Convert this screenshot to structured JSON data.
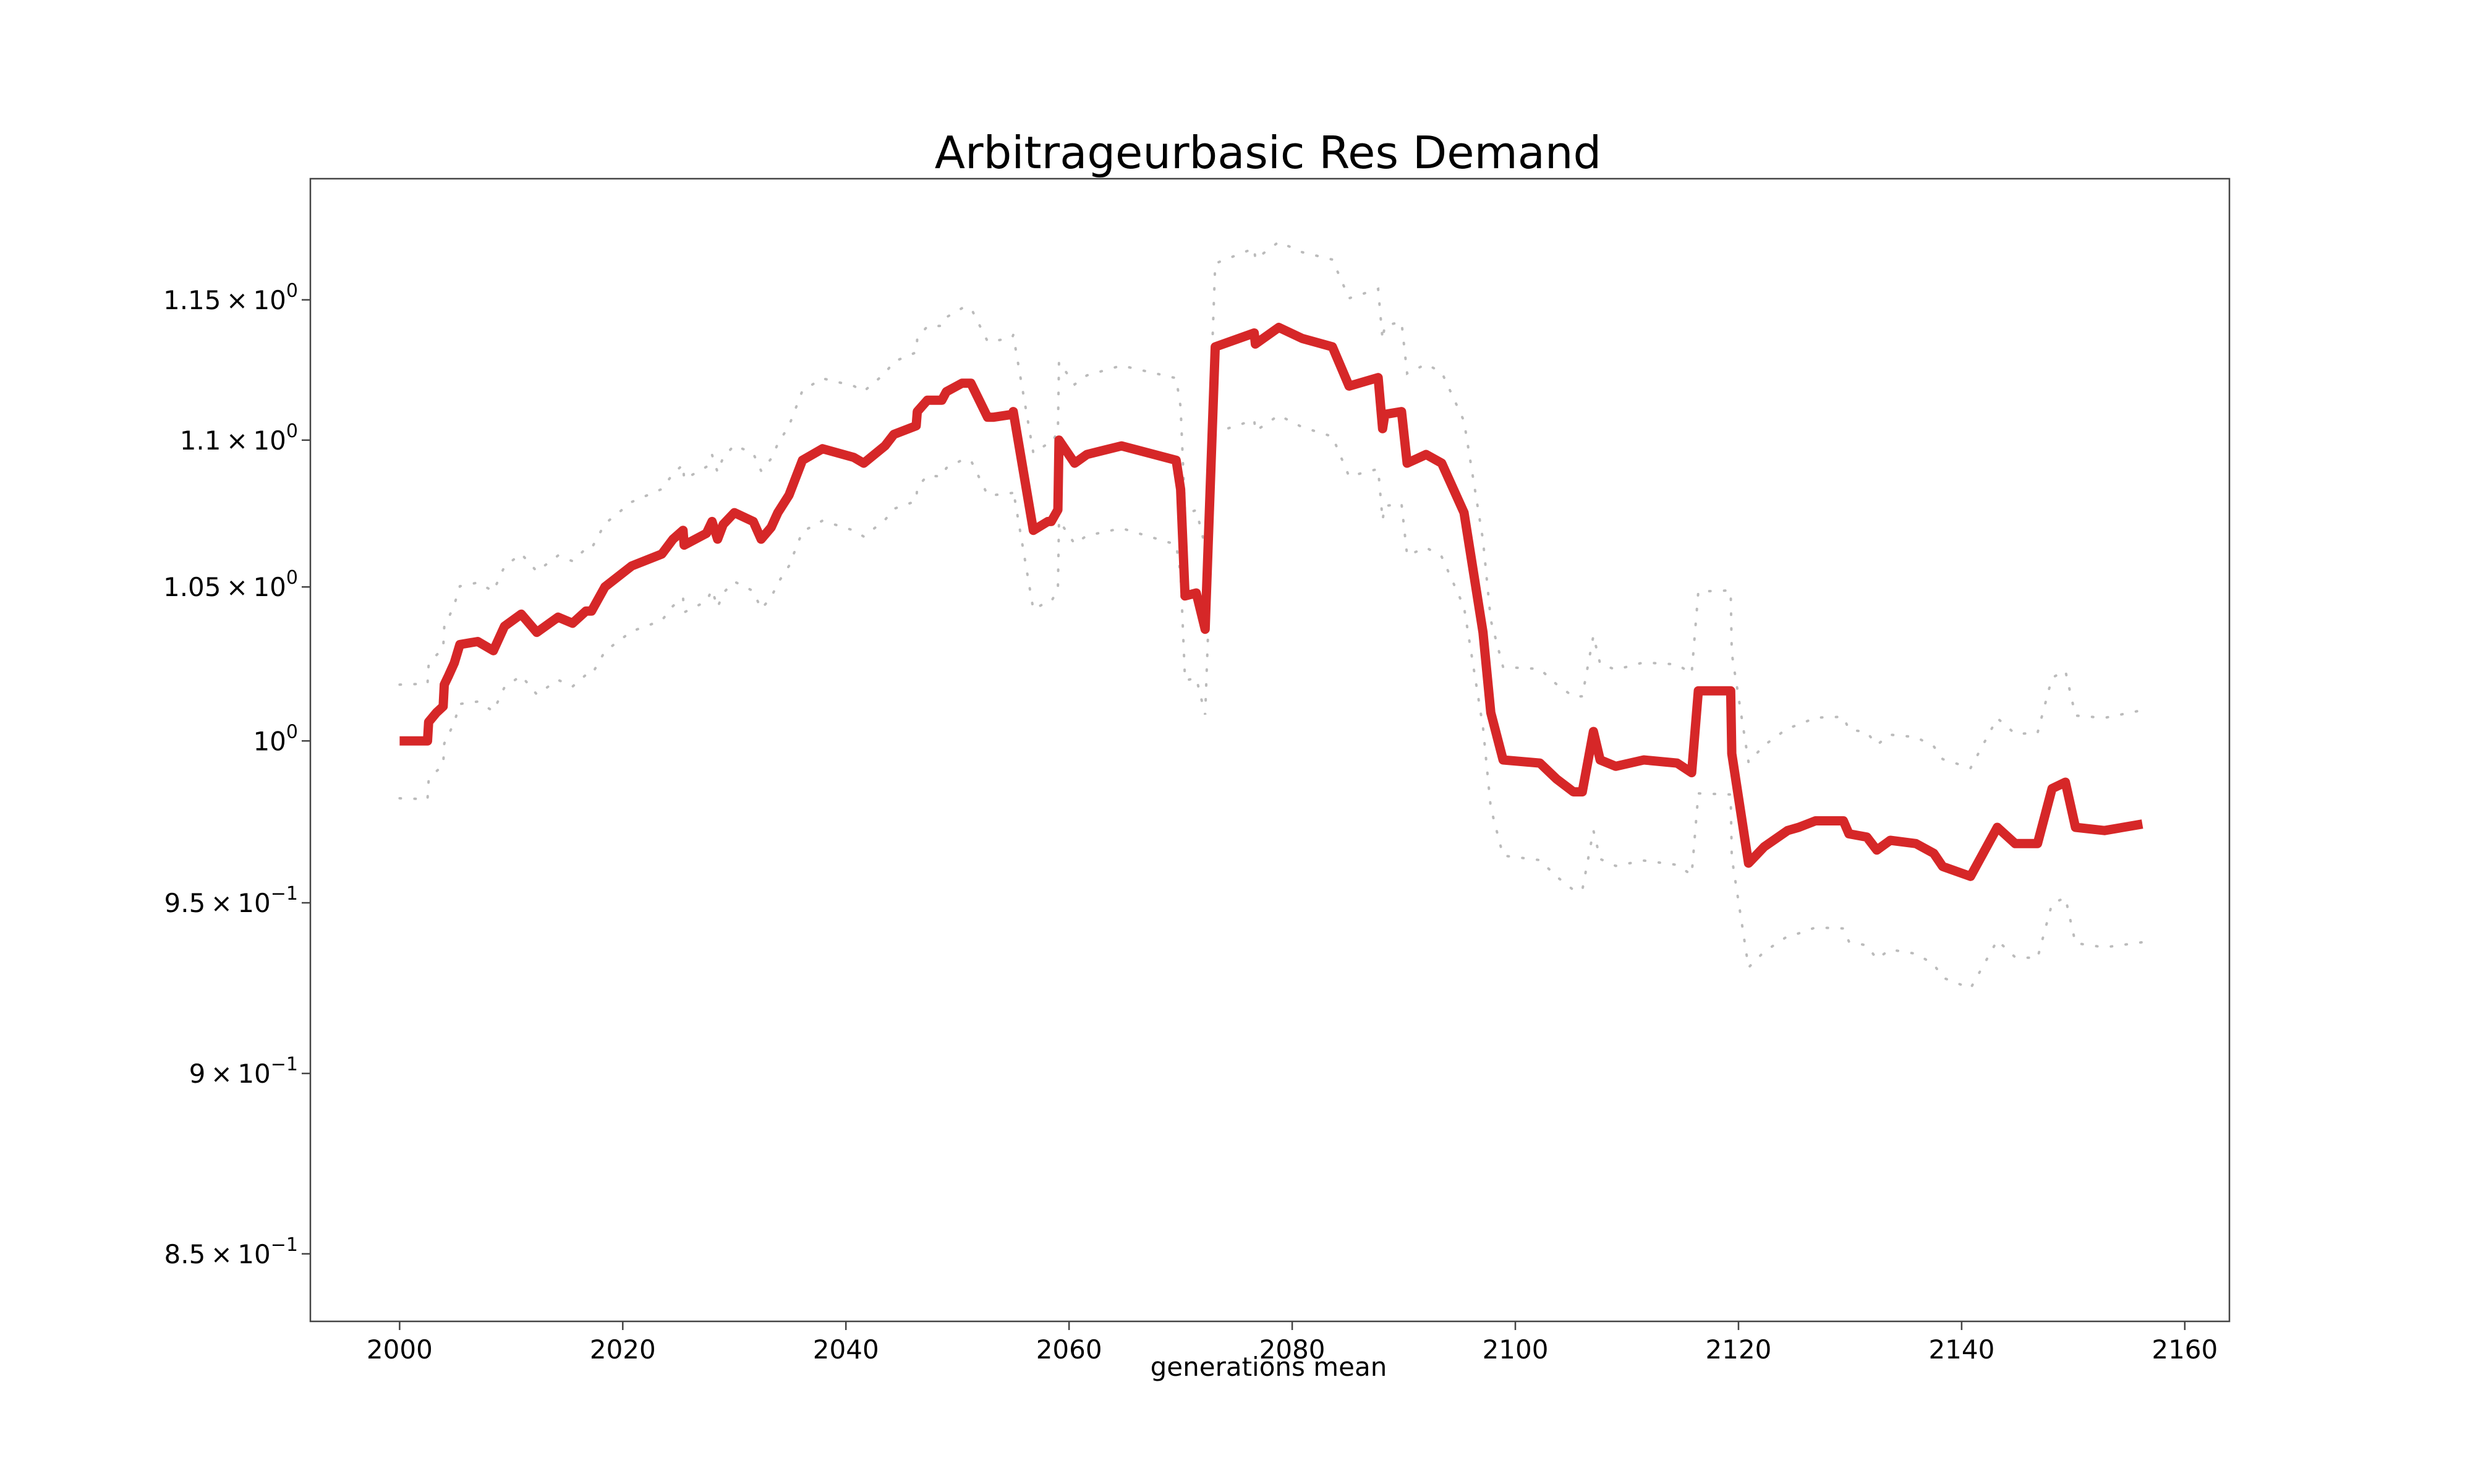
{
  "chart_data": {
    "type": "line",
    "title": "Arbitrageurbasic Res Demand",
    "xlabel": "generations mean",
    "ylabel": "",
    "y_scale": "log",
    "grid": false,
    "legend": "none",
    "xlim": [
      1992,
      2164
    ],
    "ylim": [
      0.832,
      1.195
    ],
    "x_ticks": [
      2000,
      2020,
      2040,
      2060,
      2080,
      2100,
      2120,
      2140,
      2160
    ],
    "x_tick_labels": [
      "2000",
      "2020",
      "2040",
      "2060",
      "2080",
      "2100",
      "2120",
      "2140",
      "2160"
    ],
    "y_ticks": [
      0.85,
      0.9,
      0.95,
      1.0,
      1.05,
      1.1,
      1.15
    ],
    "y_tick_labels": [
      {
        "mant": "8.5",
        "exp": "−1"
      },
      {
        "mant": "9",
        "exp": "−1"
      },
      {
        "mant": "9.5",
        "exp": "−1"
      },
      {
        "mant": "",
        "exp": "0"
      },
      {
        "mant": "1.05",
        "exp": "0"
      },
      {
        "mant": "1.1",
        "exp": "0"
      },
      {
        "mant": "1.15",
        "exp": "0"
      }
    ],
    "colors": {
      "series": "#d62728",
      "band": "#bbbbbb",
      "axes": "#444444"
    },
    "series": [
      {
        "x": [
          2000.0,
          2002.5,
          2002.6,
          2003.3,
          2003.9,
          2004.0,
          2004.4,
          2004.9,
          2005.4,
          2007.0,
          2008.4,
          2009.4,
          2010.9,
          2012.3,
          2014.2,
          2015.5,
          2016.7,
          2017.2,
          2018.4,
          2020.8,
          2023.5,
          2024.5,
          2025.4,
          2025.5,
          2027.5,
          2028.0,
          2028.5,
          2029.0,
          2030.0,
          2031.7,
          2032.4,
          2033.3,
          2033.9,
          2034.9,
          2036.1,
          2037.9,
          2040.7,
          2041.6,
          2043.5,
          2044.3,
          2046.3,
          2046.4,
          2047.3,
          2048.6,
          2049.0,
          2050.4,
          2051.2,
          2052.7,
          2053.2,
          2054.9,
          2055.0,
          2056.8,
          2058.1,
          2058.4,
          2059.0,
          2059.1,
          2060.5,
          2061.6,
          2064.7,
          2069.6,
          2070.0,
          2070.4,
          2071.4,
          2072.2,
          2073.1,
          2076.6,
          2076.7,
          2078.8,
          2080.9,
          2083.6,
          2085.1,
          2087.7,
          2088.1,
          2088.3,
          2089.8,
          2090.3,
          2092.0,
          2093.4,
          2095.4,
          2097.1,
          2097.8,
          2098.9,
          2102.2,
          2103.7,
          2105.2,
          2106.0,
          2107.0,
          2107.6,
          2109.0,
          2111.5,
          2114.5,
          2115.8,
          2116.4,
          2119.3,
          2119.4,
          2120.9,
          2122.3,
          2124.4,
          2125.4,
          2126.9,
          2129.4,
          2129.9,
          2131.5,
          2132.4,
          2133.6,
          2135.9,
          2137.5,
          2138.3,
          2140.8,
          2143.2,
          2144.8,
          2146.8,
          2148.1,
          2149.3,
          2150.2,
          2152.8,
          2156.2
        ],
        "y": [
          1.0,
          1.0,
          1.006,
          1.009,
          1.011,
          1.018,
          1.021,
          1.025,
          1.031,
          1.032,
          1.029,
          1.037,
          1.041,
          1.035,
          1.04,
          1.038,
          1.042,
          1.042,
          1.05,
          1.057,
          1.061,
          1.066,
          1.069,
          1.064,
          1.068,
          1.072,
          1.066,
          1.071,
          1.075,
          1.072,
          1.066,
          1.07,
          1.075,
          1.081,
          1.093,
          1.097,
          1.094,
          1.092,
          1.098,
          1.102,
          1.105,
          1.11,
          1.114,
          1.114,
          1.117,
          1.12,
          1.12,
          1.108,
          1.108,
          1.109,
          1.11,
          1.069,
          1.072,
          1.072,
          1.076,
          1.1,
          1.092,
          1.095,
          1.098,
          1.093,
          1.083,
          1.047,
          1.048,
          1.036,
          1.133,
          1.138,
          1.134,
          1.14,
          1.136,
          1.133,
          1.119,
          1.122,
          1.104,
          1.109,
          1.11,
          1.092,
          1.095,
          1.092,
          1.075,
          1.035,
          1.009,
          0.994,
          0.993,
          0.988,
          0.984,
          0.984,
          1.003,
          0.994,
          0.992,
          0.994,
          0.993,
          0.99,
          1.016,
          1.016,
          0.996,
          0.962,
          0.967,
          0.972,
          0.973,
          0.975,
          0.975,
          0.971,
          0.97,
          0.966,
          0.969,
          0.968,
          0.965,
          0.961,
          0.958,
          0.973,
          0.968,
          0.968,
          0.985,
          0.987,
          0.973,
          0.972,
          0.974
        ]
      }
    ]
  }
}
